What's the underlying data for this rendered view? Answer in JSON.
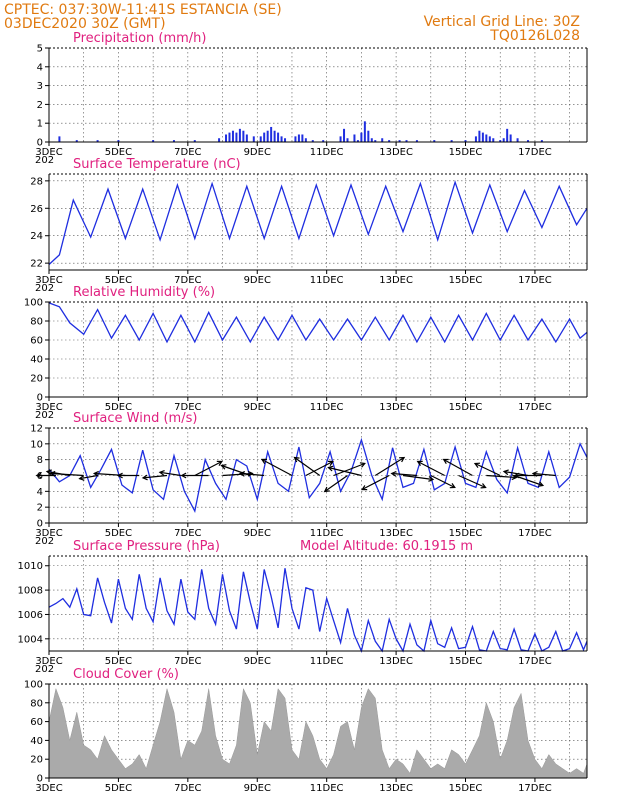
{
  "header": {
    "line1_left": "CPTEC:   037:30W-11:41S   ESTANCIA (SE)",
    "line2_left": "03DEC2020 30Z (GMT)",
    "line1_right": "Vertical Grid Line: 30Z",
    "line2_right": "TQ0126L028"
  },
  "x_axis": {
    "start_label": "3DEC",
    "tick_labels": [
      "3DEC",
      "5DEC",
      "7DEC",
      "9DEC",
      "11DEC",
      "13DEC",
      "15DEC",
      "17DEC"
    ],
    "year_fragment": "202"
  },
  "colors": {
    "header": "#e07a10",
    "title": "#e0207f",
    "line": "#1f2ee0",
    "cloud": "#aaaaaa",
    "arrow": "#000000"
  },
  "chart_data": [
    {
      "type": "bar",
      "title": "Precipitation (mm/h)",
      "ylim": [
        0,
        5
      ],
      "yticks": [
        0,
        1,
        2,
        3,
        4,
        5
      ],
      "days": [
        3,
        18.5
      ],
      "series": [
        {
          "x": [
            3.3,
            3.8,
            4.4,
            5.0,
            6.0,
            6.6,
            7.2,
            7.9,
            8.1,
            8.2,
            8.3,
            8.4,
            8.5,
            8.6,
            8.7,
            8.9,
            9.1,
            9.2,
            9.3,
            9.4,
            9.5,
            9.6,
            9.7,
            9.8,
            10.1,
            10.2,
            10.3,
            10.4,
            10.6,
            10.9,
            11.4,
            11.5,
            11.6,
            11.8,
            11.9,
            12.0,
            12.1,
            12.2,
            12.3,
            12.4,
            12.6,
            12.8,
            13.1,
            13.3,
            13.6,
            14.1,
            14.6,
            15.0,
            15.3,
            15.4,
            15.5,
            15.6,
            15.7,
            15.8,
            16.0,
            16.1,
            16.2,
            16.3,
            16.5,
            16.8,
            17.2
          ],
          "values": [
            0.3,
            0.1,
            0.1,
            0.1,
            0.1,
            0.1,
            0.1,
            0.2,
            0.4,
            0.5,
            0.6,
            0.5,
            0.7,
            0.6,
            0.4,
            0.3,
            0.3,
            0.5,
            0.6,
            0.8,
            0.6,
            0.5,
            0.3,
            0.2,
            0.3,
            0.4,
            0.4,
            0.2,
            0.1,
            0.1,
            0.3,
            0.7,
            0.2,
            0.4,
            0.1,
            0.5,
            1.1,
            0.6,
            0.2,
            0.1,
            0.2,
            0.1,
            0.1,
            0.1,
            0.1,
            0.1,
            0.1,
            0.1,
            0.3,
            0.6,
            0.5,
            0.4,
            0.3,
            0.2,
            0.1,
            0.2,
            0.7,
            0.4,
            0.2,
            0.1,
            0.1
          ]
        }
      ]
    },
    {
      "type": "line",
      "title": "Surface Temperature (nC)",
      "ylim": [
        21.5,
        28.5
      ],
      "yticks": [
        22,
        24,
        26,
        28
      ],
      "days": [
        3,
        18.5
      ],
      "series": [
        {
          "x": [
            3.0,
            3.3,
            3.7,
            4.2,
            4.7,
            5.2,
            5.7,
            6.2,
            6.7,
            7.2,
            7.7,
            8.2,
            8.7,
            9.2,
            9.7,
            10.2,
            10.7,
            11.2,
            11.7,
            12.2,
            12.7,
            13.2,
            13.7,
            14.2,
            14.7,
            15.2,
            15.7,
            16.2,
            16.7,
            17.2,
            17.7,
            18.2,
            18.5
          ],
          "values": [
            21.9,
            22.6,
            26.6,
            23.9,
            27.4,
            23.8,
            27.4,
            23.7,
            27.7,
            23.8,
            27.8,
            23.8,
            27.6,
            23.8,
            27.6,
            23.8,
            27.7,
            24.0,
            27.7,
            24.1,
            27.6,
            24.3,
            27.8,
            23.7,
            27.9,
            24.2,
            27.7,
            24.3,
            27.3,
            24.6,
            27.6,
            24.8,
            26.0
          ]
        }
      ]
    },
    {
      "type": "line",
      "title": "Relative Humidity (%)",
      "ylim": [
        0,
        100
      ],
      "yticks": [
        0,
        20,
        40,
        60,
        80,
        100
      ],
      "days": [
        3,
        18.5
      ],
      "series": [
        {
          "x": [
            3.0,
            3.3,
            3.6,
            4.0,
            4.4,
            4.8,
            5.2,
            5.6,
            6.0,
            6.4,
            6.8,
            7.2,
            7.6,
            8.0,
            8.4,
            8.8,
            9.2,
            9.6,
            10.0,
            10.4,
            10.8,
            11.2,
            11.6,
            12.0,
            12.4,
            12.8,
            13.2,
            13.6,
            14.0,
            14.4,
            14.8,
            15.2,
            15.6,
            16.0,
            16.4,
            16.8,
            17.2,
            17.6,
            18.0,
            18.3,
            18.5
          ],
          "values": [
            99,
            95,
            78,
            66,
            92,
            62,
            86,
            60,
            88,
            58,
            86,
            58,
            89,
            60,
            84,
            58,
            84,
            60,
            86,
            60,
            82,
            60,
            82,
            60,
            84,
            60,
            86,
            58,
            84,
            58,
            86,
            60,
            88,
            60,
            86,
            60,
            82,
            58,
            82,
            62,
            68
          ]
        }
      ]
    },
    {
      "type": "line",
      "title": "Surface Wind (m/s)",
      "ylim": [
        0,
        12
      ],
      "yticks": [
        0,
        2,
        4,
        6,
        8,
        10,
        12
      ],
      "days": [
        3,
        18.5
      ],
      "series": [
        {
          "x": [
            3.0,
            3.3,
            3.6,
            3.9,
            4.2,
            4.5,
            4.8,
            5.1,
            5.4,
            5.7,
            6.0,
            6.3,
            6.6,
            6.9,
            7.2,
            7.5,
            7.8,
            8.1,
            8.4,
            8.7,
            9.0,
            9.3,
            9.6,
            9.9,
            10.2,
            10.5,
            10.8,
            11.1,
            11.4,
            11.7,
            12.0,
            12.3,
            12.6,
            12.9,
            13.2,
            13.5,
            13.8,
            14.1,
            14.4,
            14.7,
            15.0,
            15.3,
            15.6,
            15.9,
            16.2,
            16.5,
            16.8,
            17.1,
            17.4,
            17.7,
            18.0,
            18.3,
            18.5
          ],
          "values": [
            6.8,
            5.2,
            6.0,
            8.5,
            4.5,
            6.8,
            9.3,
            4.8,
            3.8,
            9.2,
            4.2,
            3.0,
            8.5,
            4.0,
            1.5,
            8.0,
            5.0,
            3.0,
            8.0,
            7.2,
            3.0,
            9.0,
            5.0,
            4.0,
            9.6,
            3.2,
            5.0,
            9.0,
            4.0,
            6.5,
            10.5,
            6.0,
            3.0,
            9.5,
            4.5,
            5.0,
            9.3,
            4.2,
            5.0,
            9.6,
            5.0,
            4.5,
            9.0,
            5.5,
            3.8,
            9.5,
            5.0,
            4.5,
            9.0,
            4.5,
            5.8,
            10.0,
            8.3
          ]
        }
      ],
      "arrows": {
        "days": [
          3.2,
          3.6,
          4.0,
          4.4,
          5.2,
          5.6,
          6.4,
          6.8,
          7.2,
          7.6,
          8.0,
          8.8,
          9.2,
          10.0,
          10.4,
          10.8,
          11.2,
          11.6,
          12.0,
          12.4,
          12.8,
          13.2,
          13.6,
          14.0,
          14.4,
          14.8,
          15.2,
          15.6,
          16.0,
          16.4,
          16.8,
          17.2,
          17.6
        ],
        "dx": [
          -0.32,
          -0.38,
          -0.55,
          -0.3,
          -0.52,
          -0.35,
          -0.4,
          -0.35,
          0.45,
          -0.45,
          0.5,
          -0.48,
          -0.4,
          -0.5,
          0.45,
          -0.42,
          0.52,
          -0.38,
          -0.55,
          0.48,
          -0.45,
          0.5,
          -0.42,
          0.4,
          -0.45,
          0.45,
          -0.48,
          0.5,
          -0.42,
          0.48,
          -0.4,
          -0.45,
          -0.38
        ],
        "dy": [
          0.0,
          0.1,
          0.05,
          -0.08,
          0.05,
          0.0,
          -0.06,
          0.08,
          0.35,
          0.0,
          0.05,
          0.25,
          0.05,
          0.4,
          0.35,
          0.45,
          0.3,
          -0.4,
          0.2,
          0.45,
          -0.35,
          -0.1,
          0.05,
          -0.3,
          0.35,
          -0.3,
          0.4,
          -0.05,
          0.3,
          -0.25,
          0.1,
          0.0,
          0.05
        ]
      }
    },
    {
      "type": "line",
      "title": "Surface Pressure (hPa)",
      "subtitle": "Model Altitude: 60.1915  m",
      "ylim": [
        1003,
        1010.8
      ],
      "yticks": [
        1004,
        1006,
        1008,
        1010
      ],
      "days": [
        3,
        18.5
      ],
      "series": [
        {
          "x": [
            3.0,
            3.2,
            3.4,
            3.6,
            3.8,
            4.0,
            4.2,
            4.4,
            4.6,
            4.8,
            5.0,
            5.2,
            5.4,
            5.6,
            5.8,
            6.0,
            6.2,
            6.4,
            6.6,
            6.8,
            7.0,
            7.2,
            7.4,
            7.6,
            7.8,
            8.0,
            8.2,
            8.4,
            8.6,
            8.8,
            9.0,
            9.2,
            9.4,
            9.6,
            9.8,
            10.0,
            10.2,
            10.4,
            10.6,
            10.8,
            11.0,
            11.2,
            11.4,
            11.6,
            11.8,
            12.0,
            12.2,
            12.4,
            12.6,
            12.8,
            13.0,
            13.2,
            13.4,
            13.6,
            13.8,
            14.0,
            14.2,
            14.4,
            14.6,
            14.8,
            15.0,
            15.2,
            15.4,
            15.6,
            15.8,
            16.0,
            16.2,
            16.4,
            16.6,
            16.8,
            17.0,
            17.2,
            17.4,
            17.6,
            17.8,
            18.0,
            18.2,
            18.4,
            18.5
          ],
          "values": [
            1006.6,
            1006.9,
            1007.3,
            1006.6,
            1008.1,
            1006.0,
            1005.9,
            1009.0,
            1007.0,
            1005.3,
            1008.9,
            1006.5,
            1005.6,
            1009.3,
            1006.5,
            1005.4,
            1009.0,
            1006.3,
            1005.2,
            1008.9,
            1006.2,
            1005.6,
            1009.7,
            1006.5,
            1005.2,
            1009.3,
            1006.3,
            1004.8,
            1009.5,
            1007.0,
            1004.8,
            1009.7,
            1007.5,
            1004.9,
            1009.8,
            1006.5,
            1004.8,
            1008.2,
            1008.0,
            1004.6,
            1007.3,
            1005.5,
            1003.7,
            1006.5,
            1004.3,
            1003.0,
            1005.5,
            1003.8,
            1003.0,
            1005.6,
            1004.0,
            1003.0,
            1005.2,
            1003.5,
            1003.0,
            1005.5,
            1003.6,
            1003.3,
            1004.9,
            1003.2,
            1003.3,
            1005.0,
            1003.1,
            1003.0,
            1004.6,
            1003.2,
            1003.1,
            1004.8,
            1003.1,
            1003.0,
            1004.4,
            1003.0,
            1003.3,
            1004.6,
            1003.0,
            1003.2,
            1004.5,
            1003.1,
            1003.8
          ]
        }
      ]
    },
    {
      "type": "area",
      "title": "Cloud Cover (%)",
      "ylim": [
        0,
        100
      ],
      "yticks": [
        0,
        20,
        40,
        60,
        80,
        100
      ],
      "days": [
        3,
        18.5
      ],
      "series": [
        {
          "x": [
            3.0,
            3.2,
            3.4,
            3.6,
            3.8,
            4.0,
            4.2,
            4.4,
            4.6,
            4.8,
            5.0,
            5.2,
            5.4,
            5.6,
            5.8,
            6.0,
            6.2,
            6.4,
            6.6,
            6.8,
            7.0,
            7.2,
            7.4,
            7.6,
            7.8,
            8.0,
            8.2,
            8.4,
            8.6,
            8.8,
            9.0,
            9.2,
            9.4,
            9.6,
            9.8,
            10.0,
            10.2,
            10.4,
            10.6,
            10.8,
            11.0,
            11.2,
            11.4,
            11.6,
            11.8,
            12.0,
            12.2,
            12.4,
            12.6,
            12.8,
            13.0,
            13.2,
            13.4,
            13.6,
            13.8,
            14.0,
            14.2,
            14.4,
            14.6,
            14.8,
            15.0,
            15.2,
            15.4,
            15.6,
            15.8,
            16.0,
            16.2,
            16.4,
            16.6,
            16.8,
            17.0,
            17.2,
            17.4,
            17.6,
            17.8,
            18.0,
            18.2,
            18.4,
            18.5
          ],
          "values": [
            60,
            95,
            75,
            40,
            70,
            35,
            30,
            20,
            45,
            30,
            20,
            10,
            15,
            25,
            10,
            35,
            60,
            95,
            70,
            20,
            40,
            35,
            50,
            95,
            45,
            20,
            15,
            35,
            95,
            80,
            25,
            60,
            50,
            95,
            85,
            30,
            20,
            60,
            45,
            20,
            10,
            25,
            55,
            60,
            30,
            75,
            95,
            85,
            30,
            10,
            20,
            15,
            5,
            30,
            20,
            10,
            15,
            10,
            30,
            25,
            15,
            30,
            45,
            80,
            60,
            20,
            40,
            75,
            90,
            40,
            20,
            10,
            25,
            15,
            10,
            5,
            10,
            5,
            15
          ]
        }
      ]
    }
  ]
}
